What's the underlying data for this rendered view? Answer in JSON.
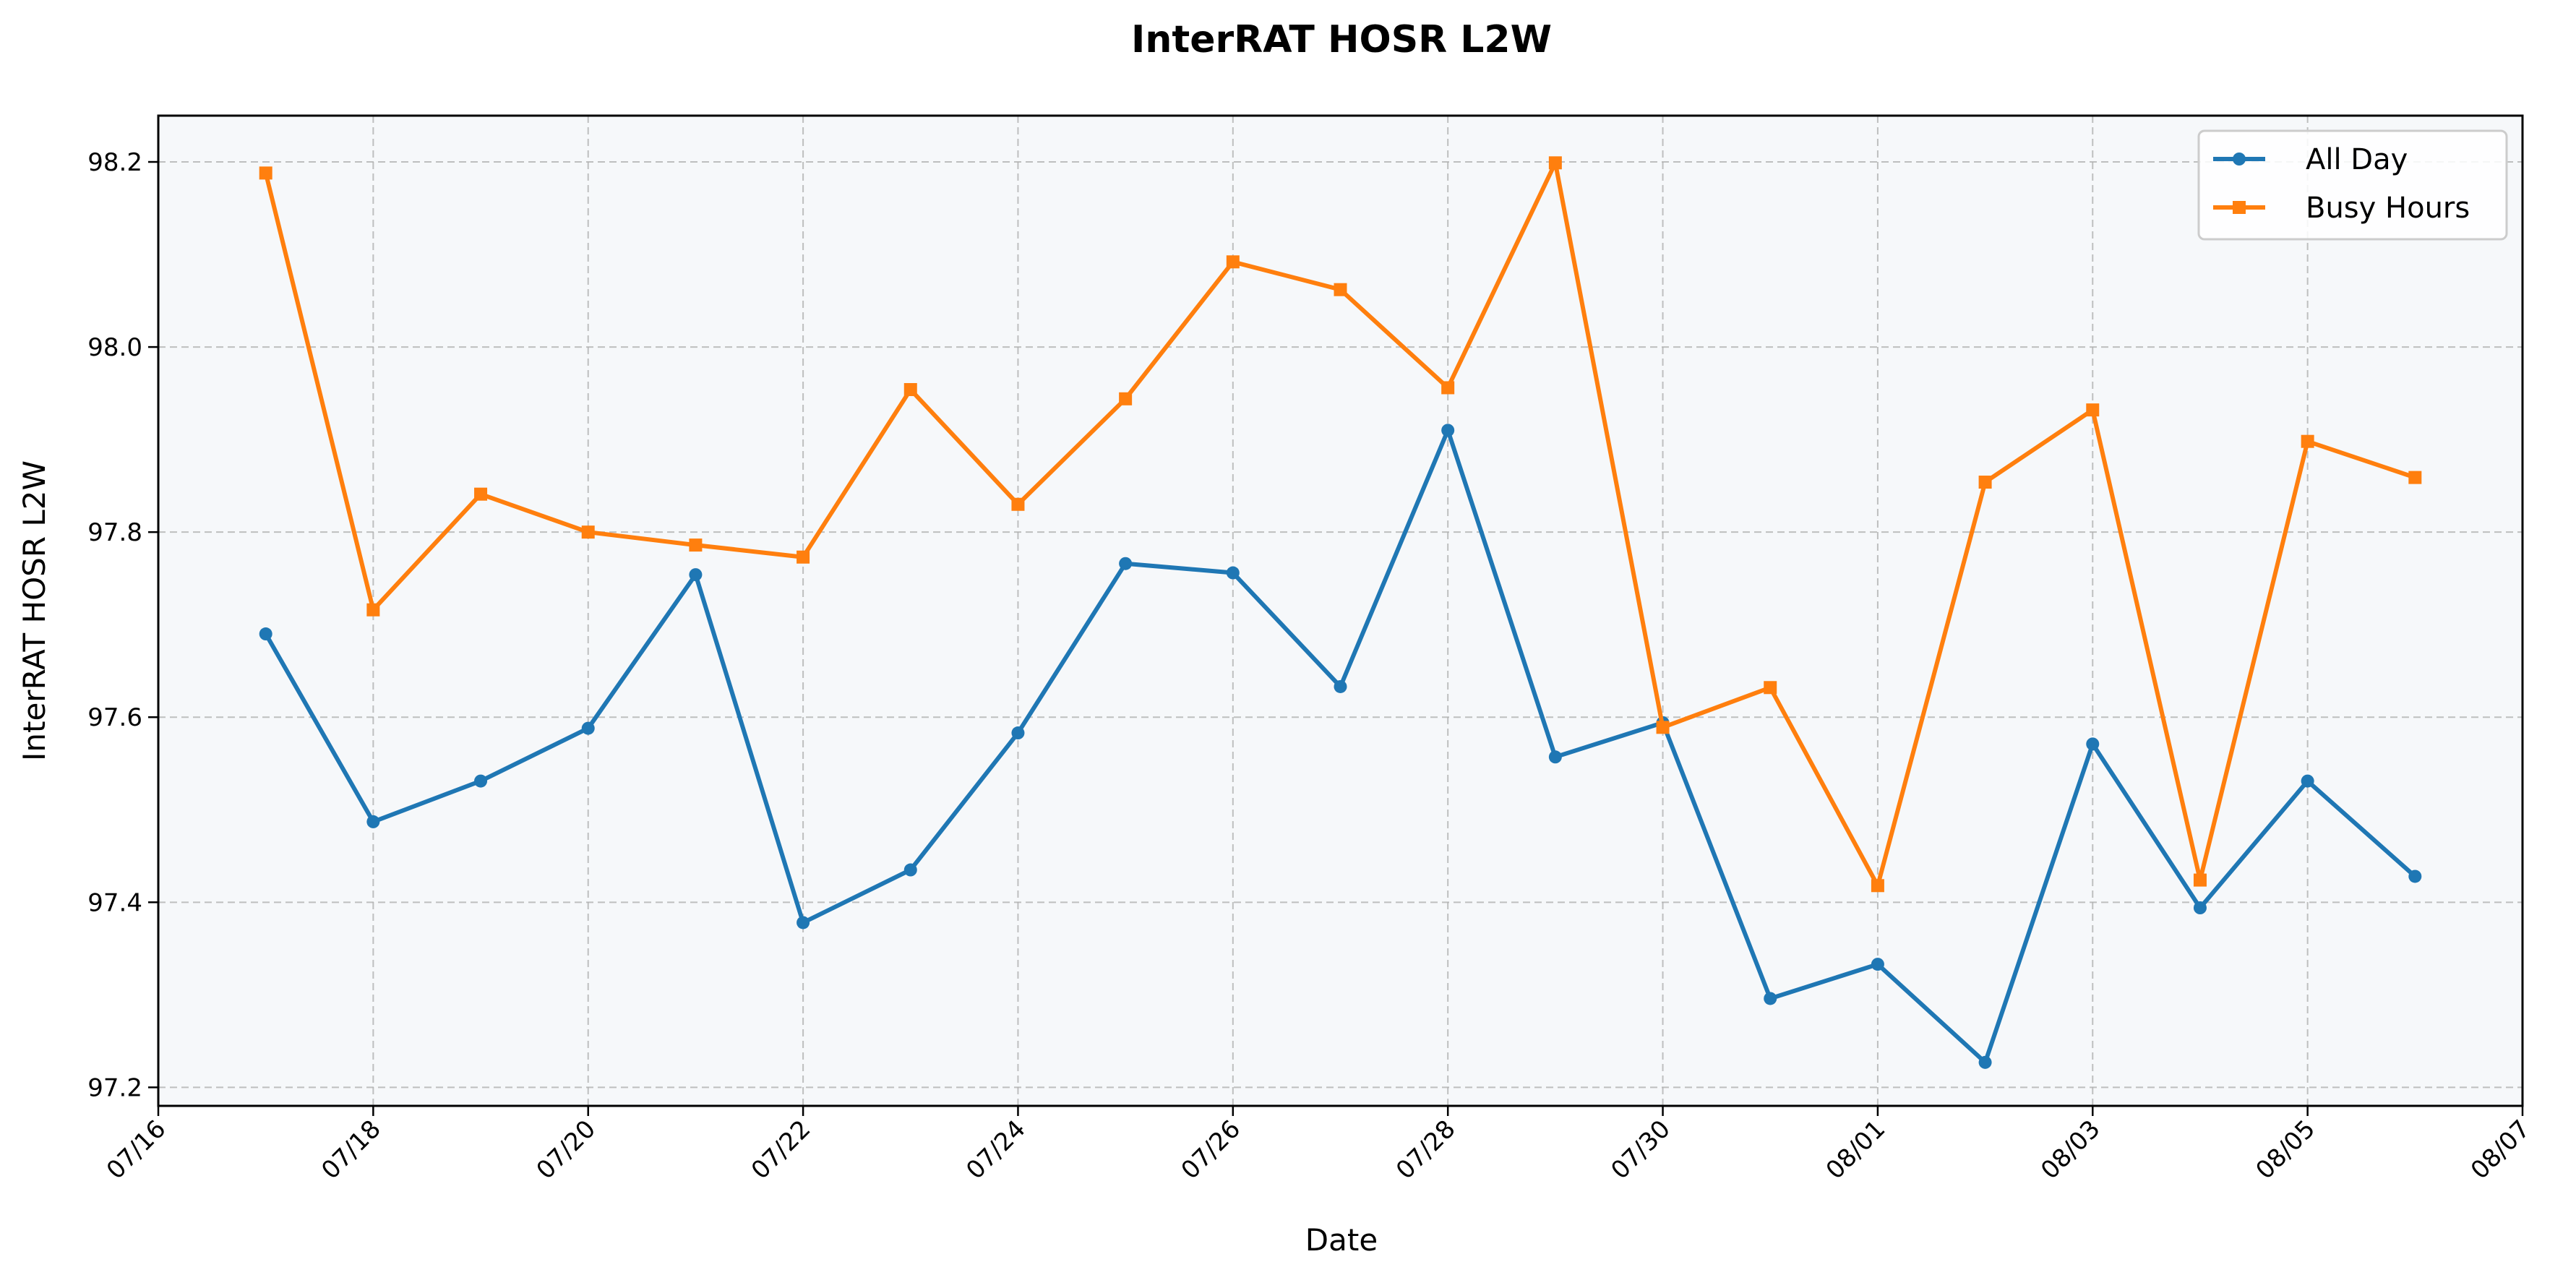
{
  "chart_data": {
    "type": "line",
    "title": "InterRAT HOSR L2W",
    "xlabel": "Date",
    "ylabel": "InterRAT HOSR L2W",
    "x_ticks": [
      "07/16",
      "07/18",
      "07/20",
      "07/22",
      "07/24",
      "07/26",
      "07/28",
      "07/30",
      "08/01",
      "08/03",
      "08/05",
      "08/07"
    ],
    "y_ticks": [
      "97.2",
      "97.4",
      "97.6",
      "97.8",
      "98.0",
      "98.2"
    ],
    "xlim": [
      "07/16",
      "08/07"
    ],
    "ylim": [
      97.18,
      98.25
    ],
    "x": [
      "07/17",
      "07/18",
      "07/19",
      "07/20",
      "07/21",
      "07/22",
      "07/23",
      "07/24",
      "07/25",
      "07/26",
      "07/27",
      "07/28",
      "07/29",
      "07/30",
      "07/31",
      "08/01",
      "08/02",
      "08/03",
      "08/04",
      "08/05",
      "08/06"
    ],
    "series": [
      {
        "name": "All Day",
        "color": "#1f77b4",
        "marker": "circle",
        "values": [
          97.69,
          97.487,
          97.531,
          97.588,
          97.754,
          97.378,
          97.435,
          97.583,
          97.766,
          97.756,
          97.633,
          97.91,
          97.557,
          97.594,
          97.296,
          97.333,
          97.227,
          97.571,
          97.394,
          97.531,
          97.428
        ]
      },
      {
        "name": "Busy Hours",
        "color": "#ff7f0e",
        "marker": "square",
        "values": [
          98.188,
          97.716,
          97.841,
          97.8,
          97.786,
          97.773,
          97.954,
          97.83,
          97.944,
          98.092,
          98.062,
          97.956,
          98.199,
          97.589,
          97.632,
          97.418,
          97.854,
          97.932,
          97.424,
          97.898,
          97.859
        ]
      }
    ],
    "grid": true,
    "legend_position": "top-right",
    "background_color": "#f6f8fa"
  }
}
